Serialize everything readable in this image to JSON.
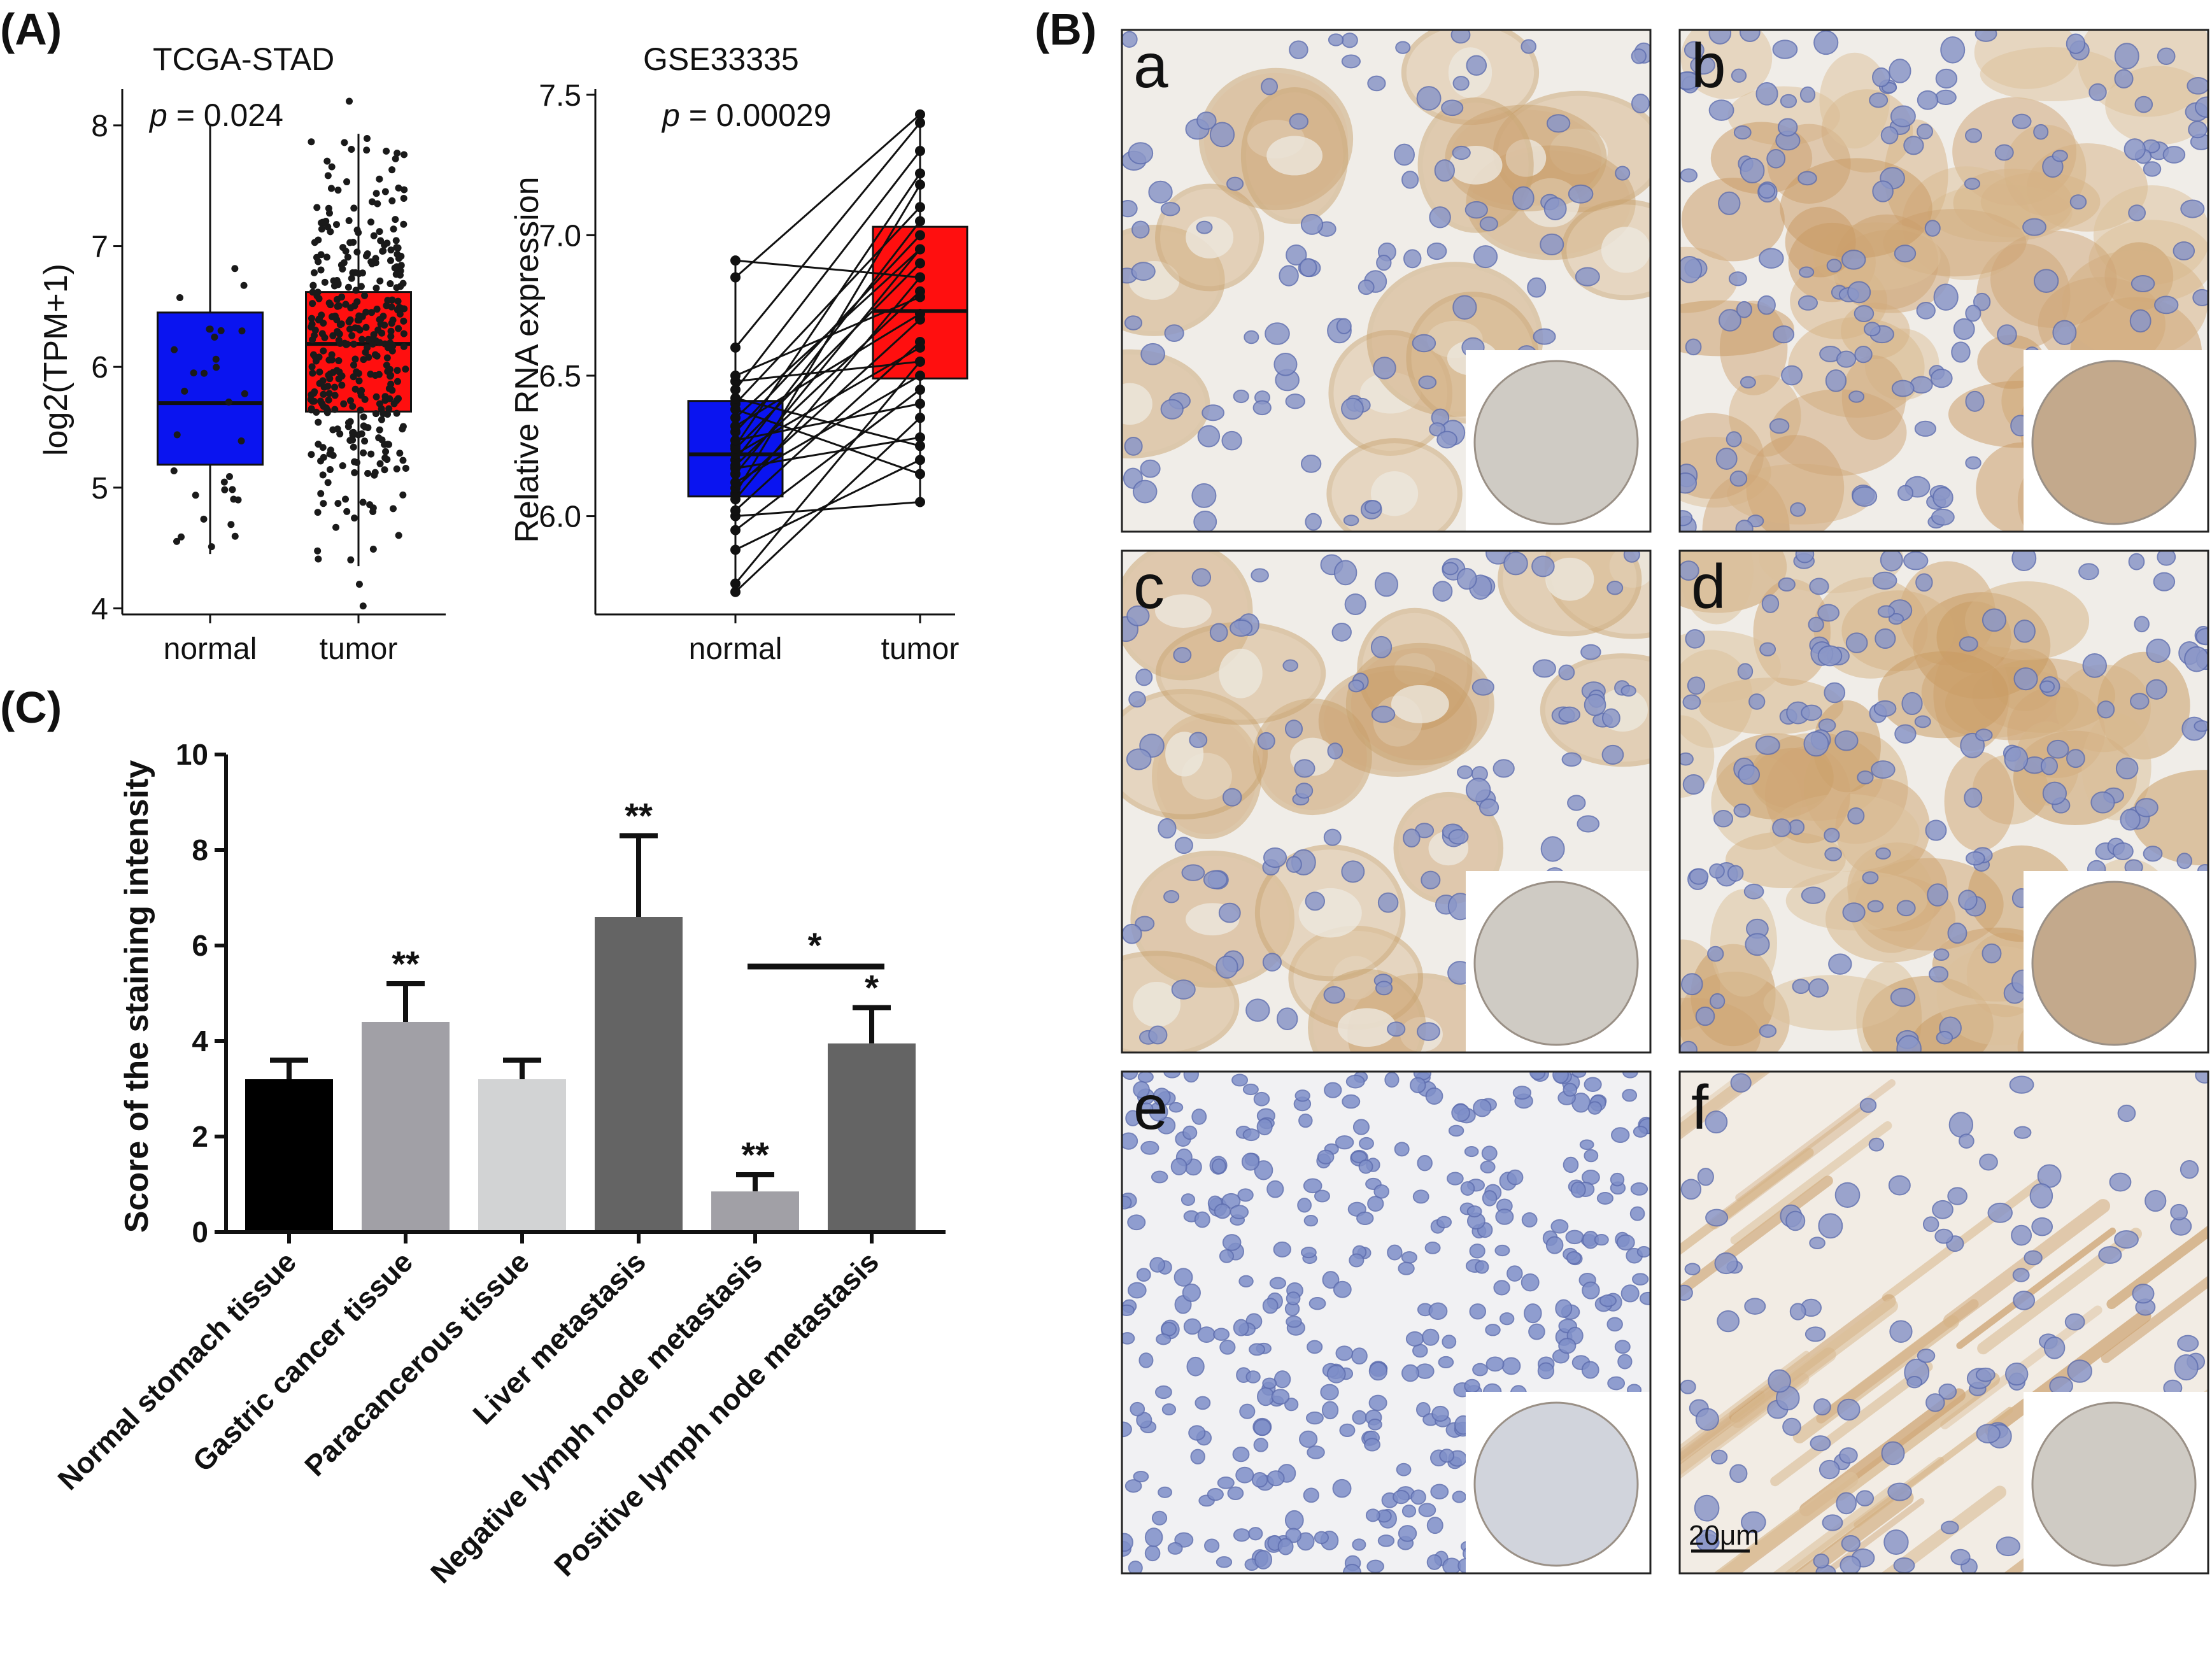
{
  "panel_labels": {
    "A": "(A)",
    "B": "(B)",
    "C": "(C)"
  },
  "colors": {
    "normal_box": "#0a14f0",
    "tumor_box": "#ff0f0f",
    "c_bars": [
      "#000000",
      "#a1a0a6",
      "#d2d3d4",
      "#646464",
      "#a1a0a6",
      "#646464"
    ],
    "tissue_bg": "#eeeae4",
    "nucleus": "#8b97c8",
    "brown_stain": "#d1a973"
  },
  "chart_data": [
    {
      "id": "tcga",
      "type": "box",
      "title": "TCGA-STAD",
      "xlabel": "",
      "ylabel": "log2(TPM+1)",
      "p_prefix": "p",
      "p_suffix": " = 0.024",
      "ylim": [
        3.95,
        8.3
      ],
      "yticks": [
        "4",
        "5",
        "6",
        "7",
        "8"
      ],
      "categories": [
        "normal",
        "tumor"
      ],
      "boxes": [
        {
          "name": "normal",
          "q1": 5.19,
          "median": 5.7,
          "q3": 6.45,
          "whisker_low": 4.45,
          "whisker_high": 8.0
        },
        {
          "name": "tumor",
          "q1": 5.63,
          "median": 6.19,
          "q3": 6.62,
          "whisker_low": 4.35,
          "whisker_high": 7.93
        }
      ],
      "outliers": [
        {
          "group": "tumor",
          "values": [
            4.02,
            4.2,
            8.2
          ]
        }
      ]
    },
    {
      "id": "gse",
      "type": "box-paired",
      "title": "GSE33335",
      "xlabel": "",
      "ylabel": "Relative RNA expression",
      "p_prefix": "p",
      "p_suffix": " = 0.00029",
      "ylim": [
        5.65,
        7.52
      ],
      "yticks": [
        "6.0",
        "6.5",
        "7.0",
        "7.5"
      ],
      "categories": [
        "normal",
        "tumor"
      ],
      "boxes": [
        {
          "name": "normal",
          "q1": 6.07,
          "median": 6.22,
          "q3": 6.41,
          "whisker_low": 5.73,
          "whisker_high": 6.91
        },
        {
          "name": "tumor",
          "q1": 6.49,
          "median": 6.73,
          "q3": 7.03,
          "whisker_low": 6.05,
          "whisker_high": 7.43
        }
      ],
      "pairs": [
        [
          5.73,
          6.35
        ],
        [
          5.76,
          6.55
        ],
        [
          5.88,
          6.2
        ],
        [
          5.95,
          6.45
        ],
        [
          6.0,
          6.05
        ],
        [
          6.02,
          6.62
        ],
        [
          6.06,
          6.85
        ],
        [
          6.08,
          7.18
        ],
        [
          6.1,
          6.7
        ],
        [
          6.12,
          6.5
        ],
        [
          6.15,
          6.95
        ],
        [
          6.17,
          6.28
        ],
        [
          6.18,
          6.8
        ],
        [
          6.2,
          7.05
        ],
        [
          6.22,
          6.6
        ],
        [
          6.24,
          6.9
        ],
        [
          6.25,
          7.22
        ],
        [
          6.27,
          6.4
        ],
        [
          6.3,
          7.0
        ],
        [
          6.32,
          6.72
        ],
        [
          6.35,
          6.95
        ],
        [
          6.38,
          6.15
        ],
        [
          6.4,
          7.1
        ],
        [
          6.42,
          6.25
        ],
        [
          6.45,
          7.3
        ],
        [
          6.48,
          6.55
        ],
        [
          6.5,
          6.78
        ],
        [
          6.6,
          7.4
        ],
        [
          6.85,
          7.43
        ],
        [
          6.91,
          6.85
        ]
      ]
    },
    {
      "id": "ihc",
      "type": "bar",
      "title": "",
      "xlabel": "",
      "ylabel": "Score of the staining intensity",
      "ylim": [
        0,
        10
      ],
      "yticks": [
        "0",
        "2",
        "4",
        "6",
        "8",
        "10"
      ],
      "categories": [
        "Normal stomach tissue",
        "Gastric cancer tissue",
        "Paracancerous tissue",
        "Liver metastasis",
        "Negative lymph node metastasis",
        "Positive lymph node metastasis"
      ],
      "values": [
        3.2,
        4.4,
        3.2,
        6.6,
        0.85,
        3.95
      ],
      "errors": [
        0.4,
        0.8,
        0.4,
        1.7,
        0.35,
        0.75
      ],
      "significance": [
        "",
        "**",
        "",
        "**",
        "**",
        "*"
      ],
      "bracket": {
        "from": 4,
        "to": 5,
        "label": "*"
      }
    }
  ],
  "micrographs": [
    {
      "id": "a",
      "label": "a",
      "style": "normal",
      "stain": 0.35
    },
    {
      "id": "b",
      "label": "b",
      "style": "tumor",
      "stain": 0.75
    },
    {
      "id": "c",
      "label": "c",
      "style": "normal",
      "stain": 0.4
    },
    {
      "id": "d",
      "label": "d",
      "style": "tumor",
      "stain": 0.8
    },
    {
      "id": "e",
      "label": "e",
      "style": "lymph",
      "stain": 0.05
    },
    {
      "id": "f",
      "label": "f",
      "style": "stroma",
      "stain": 0.6
    }
  ],
  "scale_bar": "20μm"
}
